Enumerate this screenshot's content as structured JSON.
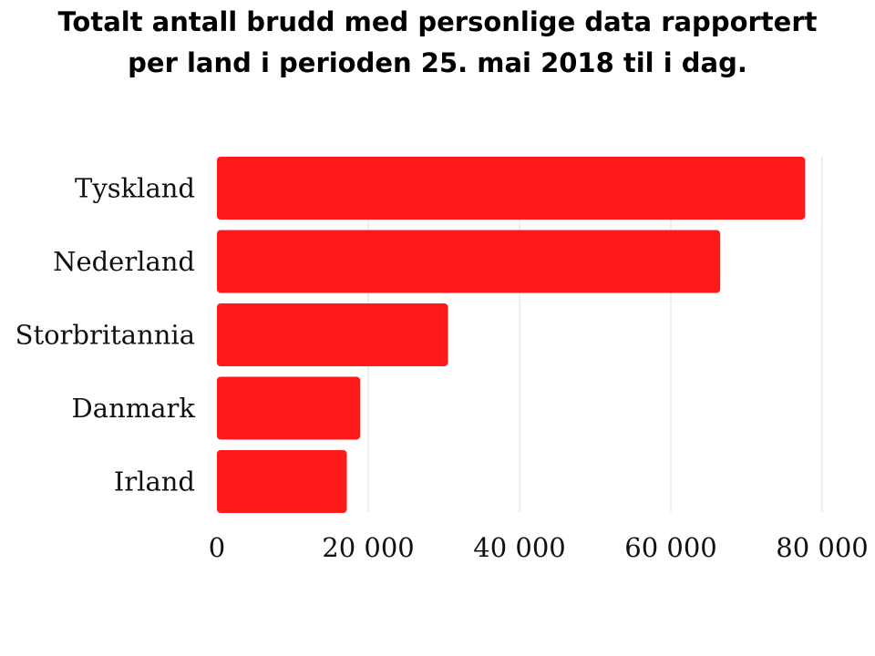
{
  "chart_data": {
    "type": "bar",
    "orientation": "horizontal",
    "title_lines": [
      "Totalt antall brudd med personlige data rapportert",
      "per land i perioden 25. mai 2018 til i dag."
    ],
    "categories": [
      "Tyskland",
      "Nederland",
      "Storbritannia",
      "Danmark",
      "Irland"
    ],
    "values": [
      77747,
      66527,
      30536,
      18925,
      17170
    ],
    "xlim": [
      0,
      80000
    ],
    "xticks": [
      0,
      20000,
      40000,
      60000,
      80000
    ],
    "xtick_labels": [
      "0",
      "20 000",
      "40 000",
      "60 000",
      "80 000"
    ],
    "xlabel": "",
    "ylabel": "",
    "grid": "vertical",
    "legend": "none",
    "bar_color": "#ff1a1a",
    "grid_color": "#dddddd"
  }
}
